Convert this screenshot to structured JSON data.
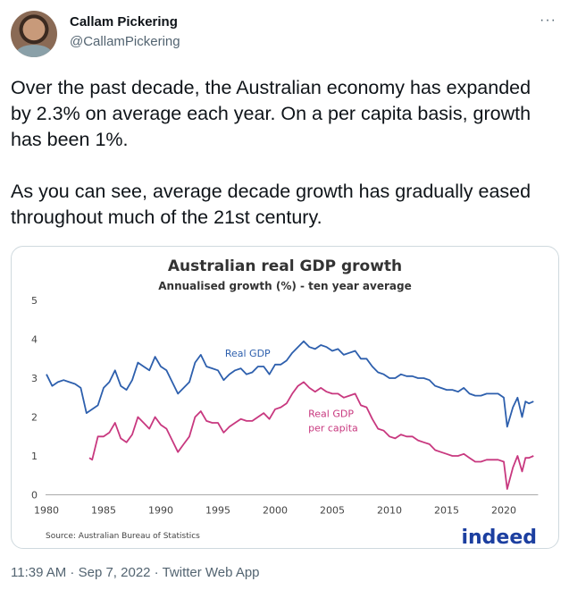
{
  "user": {
    "name": "Callam Pickering",
    "handle": "@CallamPickering"
  },
  "more_label": "···",
  "tweet": {
    "paragraphs": [
      "Over the past decade, the Australian economy has expanded by 2.3% on average each year. On a per capita basis, growth has been 1%.",
      "As you can see, average decade growth has gradually eased throughout much of the 21st century."
    ]
  },
  "footer": {
    "time": "11:39 AM",
    "date": "Sep 7, 2022",
    "source": "Twitter Web App",
    "sep": " · "
  },
  "chart_data": {
    "type": "line",
    "title": "Australian real GDP growth",
    "subtitle": "Annualised growth (%) - ten year average",
    "source": "Source: Australian Bureau of Statistics",
    "logo": "indeed",
    "xlim": [
      1980,
      2023
    ],
    "ylim": [
      0,
      5
    ],
    "xticks": [
      1980,
      1985,
      1990,
      1995,
      2000,
      2005,
      2010,
      2015,
      2020
    ],
    "yticks": [
      0,
      1,
      2,
      3,
      4,
      5
    ],
    "grid": false,
    "series": [
      {
        "name": "Real GDP",
        "color": "#2d5fad",
        "x": [
          1980,
          1980.5,
          1981,
          1981.5,
          1982,
          1982.5,
          1983,
          1983.5,
          1984,
          1984.5,
          1985,
          1985.5,
          1986,
          1986.5,
          1987,
          1987.5,
          1988,
          1988.5,
          1989,
          1989.5,
          1990,
          1990.5,
          1991,
          1991.5,
          1992,
          1992.5,
          1993,
          1993.5,
          1994,
          1994.5,
          1995,
          1995.5,
          1996,
          1996.5,
          1997,
          1997.5,
          1998,
          1998.5,
          1999,
          1999.5,
          2000,
          2000.5,
          2001,
          2001.5,
          2002,
          2002.5,
          2003,
          2003.5,
          2004,
          2004.5,
          2005,
          2005.5,
          2006,
          2006.5,
          2007,
          2007.5,
          2008,
          2008.5,
          2009,
          2009.5,
          2010,
          2010.5,
          2011,
          2011.5,
          2012,
          2012.5,
          2013,
          2013.5,
          2014,
          2014.5,
          2015,
          2015.5,
          2016,
          2016.5,
          2017,
          2017.5,
          2018,
          2018.5,
          2019,
          2019.5,
          2020,
          2020.3,
          2020.8,
          2021.2,
          2021.6,
          2021.9,
          2022.2,
          2022.6
        ],
        "y": [
          3.1,
          2.8,
          2.9,
          2.95,
          2.9,
          2.85,
          2.75,
          2.1,
          2.2,
          2.3,
          2.75,
          2.9,
          3.2,
          2.8,
          2.7,
          2.95,
          3.4,
          3.3,
          3.2,
          3.55,
          3.3,
          3.2,
          2.9,
          2.6,
          2.75,
          2.9,
          3.4,
          3.6,
          3.3,
          3.25,
          3.2,
          2.95,
          3.1,
          3.2,
          3.25,
          3.1,
          3.15,
          3.3,
          3.3,
          3.1,
          3.35,
          3.35,
          3.45,
          3.65,
          3.8,
          3.95,
          3.8,
          3.75,
          3.85,
          3.8,
          3.7,
          3.75,
          3.6,
          3.65,
          3.7,
          3.5,
          3.5,
          3.3,
          3.15,
          3.1,
          3.0,
          3.0,
          3.1,
          3.05,
          3.05,
          3.0,
          3.0,
          2.95,
          2.8,
          2.75,
          2.7,
          2.7,
          2.65,
          2.75,
          2.6,
          2.55,
          2.55,
          2.6,
          2.6,
          2.6,
          2.5,
          1.75,
          2.25,
          2.5,
          2.0,
          2.4,
          2.35,
          2.4
        ]
      },
      {
        "name": "Real GDP per capita",
        "color": "#c8387f",
        "x": [
          1983.75,
          1984,
          1984.5,
          1985,
          1985.5,
          1986,
          1986.5,
          1987,
          1987.5,
          1988,
          1988.5,
          1989,
          1989.5,
          1990,
          1990.5,
          1991,
          1991.5,
          1992,
          1992.5,
          1993,
          1993.5,
          1994,
          1994.5,
          1995,
          1995.5,
          1996,
          1996.5,
          1997,
          1997.5,
          1998,
          1998.5,
          1999,
          1999.5,
          2000,
          2000.5,
          2001,
          2001.5,
          2002,
          2002.5,
          2003,
          2003.5,
          2004,
          2004.5,
          2005,
          2005.5,
          2006,
          2006.5,
          2007,
          2007.5,
          2008,
          2008.5,
          2009,
          2009.5,
          2010,
          2010.5,
          2011,
          2011.5,
          2012,
          2012.5,
          2013,
          2013.5,
          2014,
          2014.5,
          2015,
          2015.5,
          2016,
          2016.5,
          2017,
          2017.5,
          2018,
          2018.5,
          2019,
          2019.5,
          2020,
          2020.3,
          2020.8,
          2021.2,
          2021.6,
          2021.9,
          2022.2,
          2022.6
        ],
        "y": [
          0.95,
          0.9,
          1.5,
          1.5,
          1.6,
          1.85,
          1.45,
          1.35,
          1.55,
          2.0,
          1.85,
          1.7,
          2.0,
          1.8,
          1.7,
          1.4,
          1.1,
          1.3,
          1.5,
          2.0,
          2.15,
          1.9,
          1.85,
          1.85,
          1.6,
          1.75,
          1.85,
          1.95,
          1.9,
          1.9,
          2.0,
          2.1,
          1.95,
          2.2,
          2.25,
          2.35,
          2.6,
          2.8,
          2.9,
          2.75,
          2.65,
          2.75,
          2.65,
          2.6,
          2.6,
          2.5,
          2.55,
          2.6,
          2.3,
          2.25,
          1.95,
          1.7,
          1.65,
          1.5,
          1.45,
          1.55,
          1.5,
          1.5,
          1.4,
          1.35,
          1.3,
          1.15,
          1.1,
          1.05,
          1.0,
          1.0,
          1.05,
          0.95,
          0.85,
          0.85,
          0.9,
          0.9,
          0.9,
          0.85,
          0.15,
          0.7,
          1.0,
          0.6,
          0.95,
          0.95,
          1.0
        ]
      }
    ],
    "annotations": [
      {
        "text": [
          "Real GDP"
        ],
        "series": 0
      },
      {
        "text": [
          "Real GDP",
          "per capita"
        ],
        "series": 1
      }
    ]
  }
}
